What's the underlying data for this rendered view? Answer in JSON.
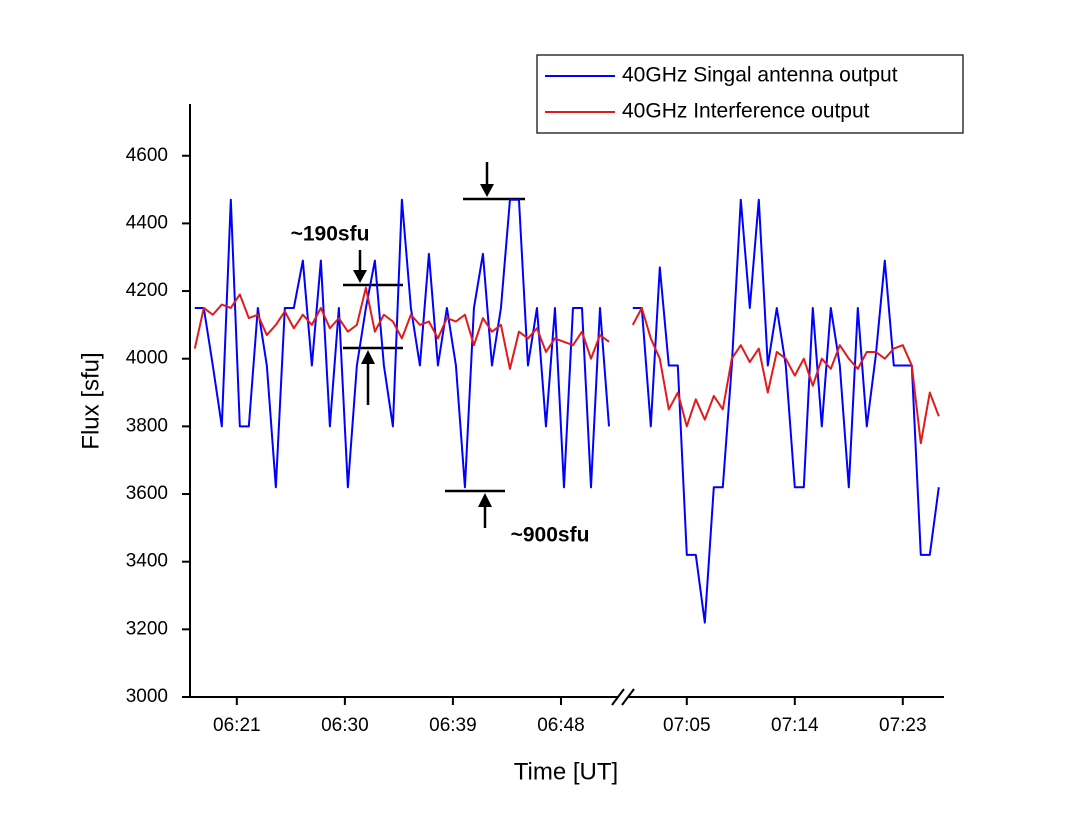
{
  "chart_data": [
    {
      "type": "line",
      "y_label": "Flux [sfu]",
      "x_label": "Time [UT]",
      "annotations": [
        "~190sfu",
        "~900sfu"
      ],
      "legend": "upper right",
      "xlim": [
        377.1,
        412.5
      ],
      "xticks": [
        {
          "value": 381,
          "label": "06:21"
        },
        {
          "value": 390,
          "label": "06:30"
        },
        {
          "value": 399,
          "label": "06:39"
        },
        {
          "value": 408,
          "label": "06:48"
        }
      ],
      "ylim": [
        3000,
        4750
      ],
      "yticks": [
        3000,
        3200,
        3400,
        3600,
        3800,
        4000,
        4200,
        4400,
        4600
      ],
      "x": [
        377.5,
        378.25,
        379,
        379.75,
        380.5,
        381.25,
        382,
        382.75,
        383.5,
        384.25,
        385,
        385.75,
        386.5,
        387.25,
        388,
        388.75,
        389.5,
        390.25,
        391,
        391.75,
        392.5,
        393.25,
        394,
        394.75,
        395.5,
        396.25,
        397,
        397.75,
        398.5,
        399.25,
        400,
        400.75,
        401.5,
        402.25,
        403,
        403.75,
        404.5,
        405.25,
        406,
        406.75,
        407.5,
        408.25,
        409,
        409.75,
        410.5,
        411.25,
        412
      ],
      "series": [
        {
          "name": "40GHz Singal antenna output",
          "color": "#0000ff",
          "values": [
            4150,
            4150,
            3980,
            3800,
            4470,
            3800,
            3800,
            4150,
            3980,
            3620,
            4150,
            4150,
            4290,
            3980,
            4290,
            3800,
            4150,
            3620,
            3980,
            4150,
            4290,
            3980,
            3800,
            4470,
            4150,
            3980,
            4310,
            3980,
            4150,
            3980,
            3620,
            4150,
            4310,
            3980,
            4150,
            4470,
            4470,
            3980,
            4150,
            3800,
            4150,
            3620,
            4150,
            4150,
            3620,
            4150,
            3800
          ]
        },
        {
          "name": "40GHz Interference output",
          "color": "#e31a1c",
          "values": [
            4030,
            4150,
            4130,
            4160,
            4150,
            4190,
            4120,
            4130,
            4070,
            4100,
            4140,
            4090,
            4130,
            4100,
            4150,
            4090,
            4120,
            4080,
            4100,
            4210,
            4080,
            4130,
            4110,
            4060,
            4130,
            4100,
            4110,
            4060,
            4120,
            4110,
            4130,
            4040,
            4120,
            4080,
            4100,
            3970,
            4080,
            4060,
            4090,
            4020,
            4060,
            4050,
            4040,
            4080,
            4000,
            4070,
            4050
          ]
        }
      ]
    },
    {
      "type": "line",
      "xlim": [
        420.1,
        446.35
      ],
      "xticks": [
        {
          "value": 425,
          "label": "07:05"
        },
        {
          "value": 434,
          "label": "07:14"
        },
        {
          "value": 443,
          "label": "07:23"
        }
      ],
      "x": [
        420.5,
        421.25,
        422,
        422.75,
        423.5,
        424.25,
        425,
        425.75,
        426.5,
        427.25,
        428,
        428.75,
        429.5,
        430.25,
        431,
        431.75,
        432.5,
        433.25,
        434,
        434.75,
        435.5,
        436.25,
        437,
        437.75,
        438.5,
        439.25,
        440,
        440.75,
        441.5,
        442.25,
        443,
        443.75,
        444.5,
        445.25,
        446
      ],
      "series": [
        {
          "color": "#0000ff",
          "values": [
            4150,
            4150,
            3800,
            4270,
            3980,
            3980,
            3420,
            3420,
            3220,
            3620,
            3620,
            3980,
            4470,
            4150,
            4470,
            3980,
            4150,
            3980,
            3620,
            3620,
            4150,
            3800,
            4150,
            3980,
            3620,
            4150,
            3800,
            4010,
            4290,
            3980,
            3980,
            3980,
            3420,
            3420,
            3620
          ]
        },
        {
          "color": "#e31a1c",
          "values": [
            4100,
            4150,
            4060,
            4000,
            3850,
            3900,
            3800,
            3880,
            3820,
            3890,
            3850,
            4000,
            4040,
            3990,
            4030,
            3900,
            4020,
            4000,
            3950,
            4000,
            3920,
            4000,
            3970,
            4040,
            4000,
            3970,
            4020,
            4020,
            4000,
            4030,
            4040,
            3980,
            3750,
            3900,
            3830
          ]
        }
      ]
    }
  ]
}
